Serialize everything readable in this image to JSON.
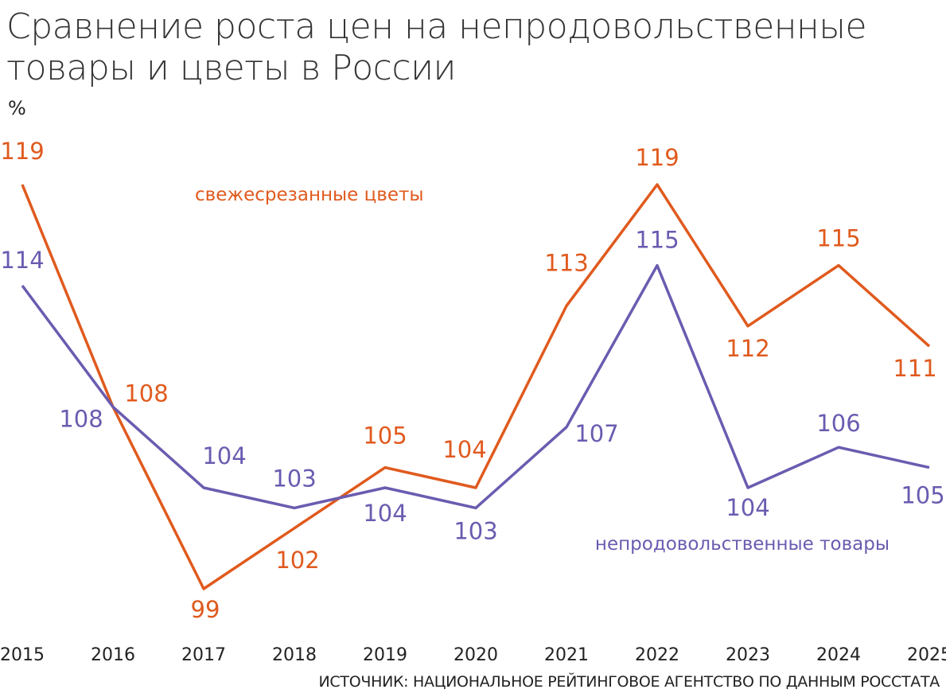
{
  "chart_data": {
    "type": "line",
    "title": "Сравнение роста цен на непродовольственные товары и цветы в России",
    "ylabel": "%",
    "xlabel": "",
    "categories": [
      "2015",
      "2016",
      "2017",
      "2018",
      "2019",
      "2020",
      "2021",
      "2022",
      "2023",
      "2024",
      "2025"
    ],
    "series": [
      {
        "name": "свежесрезанные цветы",
        "color": "#e05a1e",
        "values": [
          119,
          108,
          99,
          102,
          105,
          104,
          113,
          119,
          112,
          115,
          111
        ]
      },
      {
        "name": "непродовольственные товары",
        "color": "#6b5bb0",
        "values": [
          114,
          108,
          104,
          103,
          104,
          103,
          107,
          115,
          104,
          106,
          105
        ]
      }
    ],
    "grid": false,
    "source": "ИСТОЧНИК: НАЦИОНАЛЬНОЕ РЕЙТИНГОВОЕ АГЕНТСТВО ПО ДАННЫМ РОССТАТА"
  }
}
